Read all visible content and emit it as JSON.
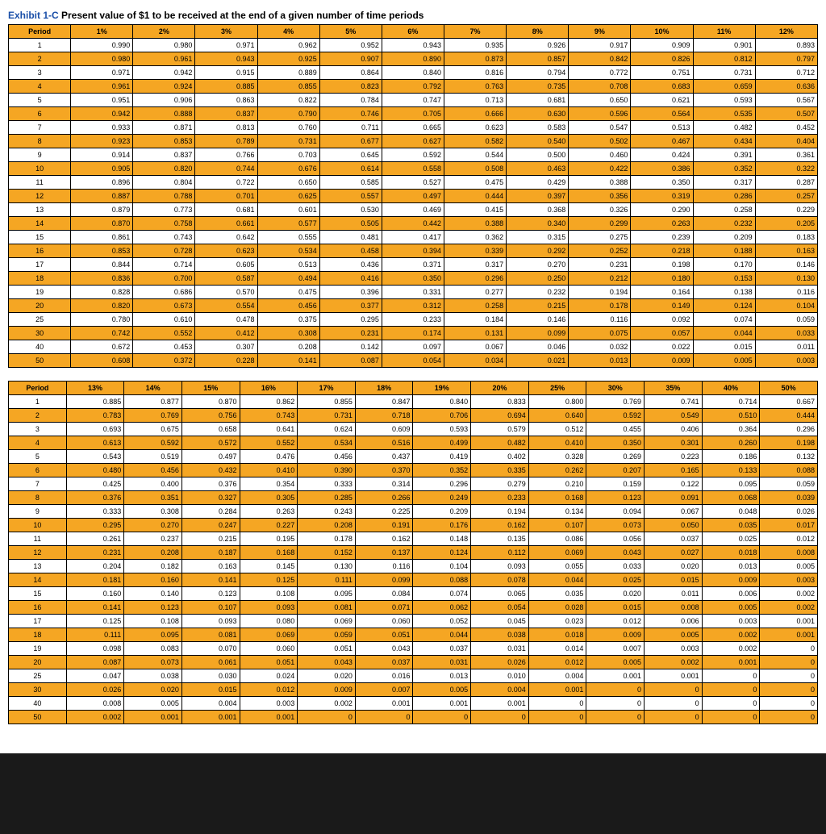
{
  "title_exhibit": "Exhibit 1-C",
  "title_rest": " Present value of $1 to be received at the end of a given number of time periods",
  "colors": {
    "header_bg": "#f5a623",
    "row_highlight": "#f5a623",
    "row_normal": "#ffffff",
    "border": "#000000",
    "page_bg": "#ffffff",
    "outer_bg": "#1a1a1a",
    "title_accent": "#1a4fa8",
    "text": "#000000"
  },
  "font_size_table": 9,
  "font_size_title": 12,
  "table1": {
    "period_header": "Period",
    "rate_headers": [
      "1%",
      "2%",
      "3%",
      "4%",
      "5%",
      "6%",
      "7%",
      "8%",
      "9%",
      "10%",
      "11%",
      "12%"
    ],
    "periods": [
      1,
      2,
      3,
      4,
      5,
      6,
      7,
      8,
      9,
      10,
      11,
      12,
      13,
      14,
      15,
      16,
      17,
      18,
      19,
      20,
      25,
      30,
      40,
      50
    ],
    "rows": [
      [
        "0.990",
        "0.980",
        "0.971",
        "0.962",
        "0.952",
        "0.943",
        "0.935",
        "0.926",
        "0.917",
        "0.909",
        "0.901",
        "0.893"
      ],
      [
        "0.980",
        "0.961",
        "0.943",
        "0.925",
        "0.907",
        "0.890",
        "0.873",
        "0.857",
        "0.842",
        "0.826",
        "0.812",
        "0.797"
      ],
      [
        "0.971",
        "0.942",
        "0.915",
        "0.889",
        "0.864",
        "0.840",
        "0.816",
        "0.794",
        "0.772",
        "0.751",
        "0.731",
        "0.712"
      ],
      [
        "0.961",
        "0.924",
        "0.885",
        "0.855",
        "0.823",
        "0.792",
        "0.763",
        "0.735",
        "0.708",
        "0.683",
        "0.659",
        "0.636"
      ],
      [
        "0.951",
        "0.906",
        "0.863",
        "0.822",
        "0.784",
        "0.747",
        "0.713",
        "0.681",
        "0.650",
        "0.621",
        "0.593",
        "0.567"
      ],
      [
        "0.942",
        "0.888",
        "0.837",
        "0.790",
        "0.746",
        "0.705",
        "0.666",
        "0.630",
        "0.596",
        "0.564",
        "0.535",
        "0.507"
      ],
      [
        "0.933",
        "0.871",
        "0.813",
        "0.760",
        "0.711",
        "0.665",
        "0.623",
        "0.583",
        "0.547",
        "0.513",
        "0.482",
        "0.452"
      ],
      [
        "0.923",
        "0.853",
        "0.789",
        "0.731",
        "0.677",
        "0.627",
        "0.582",
        "0.540",
        "0.502",
        "0.467",
        "0.434",
        "0.404"
      ],
      [
        "0.914",
        "0.837",
        "0.766",
        "0.703",
        "0.645",
        "0.592",
        "0.544",
        "0.500",
        "0.460",
        "0.424",
        "0.391",
        "0.361"
      ],
      [
        "0.905",
        "0.820",
        "0.744",
        "0.676",
        "0.614",
        "0.558",
        "0.508",
        "0.463",
        "0.422",
        "0.386",
        "0.352",
        "0.322"
      ],
      [
        "0.896",
        "0.804",
        "0.722",
        "0.650",
        "0.585",
        "0.527",
        "0.475",
        "0.429",
        "0.388",
        "0.350",
        "0.317",
        "0.287"
      ],
      [
        "0.887",
        "0.788",
        "0.701",
        "0.625",
        "0.557",
        "0.497",
        "0.444",
        "0.397",
        "0.356",
        "0.319",
        "0.286",
        "0.257"
      ],
      [
        "0.879",
        "0.773",
        "0.681",
        "0.601",
        "0.530",
        "0.469",
        "0.415",
        "0.368",
        "0.326",
        "0.290",
        "0.258",
        "0.229"
      ],
      [
        "0.870",
        "0.758",
        "0.661",
        "0.577",
        "0.505",
        "0.442",
        "0.388",
        "0.340",
        "0.299",
        "0.263",
        "0.232",
        "0.205"
      ],
      [
        "0.861",
        "0.743",
        "0.642",
        "0.555",
        "0.481",
        "0.417",
        "0.362",
        "0.315",
        "0.275",
        "0.239",
        "0.209",
        "0.183"
      ],
      [
        "0.853",
        "0.728",
        "0.623",
        "0.534",
        "0.458",
        "0.394",
        "0.339",
        "0.292",
        "0.252",
        "0.218",
        "0.188",
        "0.163"
      ],
      [
        "0.844",
        "0.714",
        "0.605",
        "0.513",
        "0.436",
        "0.371",
        "0.317",
        "0.270",
        "0.231",
        "0.198",
        "0.170",
        "0.146"
      ],
      [
        "0.836",
        "0.700",
        "0.587",
        "0.494",
        "0.416",
        "0.350",
        "0.296",
        "0.250",
        "0.212",
        "0.180",
        "0.153",
        "0.130"
      ],
      [
        "0.828",
        "0.686",
        "0.570",
        "0.475",
        "0.396",
        "0.331",
        "0.277",
        "0.232",
        "0.194",
        "0.164",
        "0.138",
        "0.116"
      ],
      [
        "0.820",
        "0.673",
        "0.554",
        "0.456",
        "0.377",
        "0.312",
        "0.258",
        "0.215",
        "0.178",
        "0.149",
        "0.124",
        "0.104"
      ],
      [
        "0.780",
        "0.610",
        "0.478",
        "0.375",
        "0.295",
        "0.233",
        "0.184",
        "0.146",
        "0.116",
        "0.092",
        "0.074",
        "0.059"
      ],
      [
        "0.742",
        "0.552",
        "0.412",
        "0.308",
        "0.231",
        "0.174",
        "0.131",
        "0.099",
        "0.075",
        "0.057",
        "0.044",
        "0.033"
      ],
      [
        "0.672",
        "0.453",
        "0.307",
        "0.208",
        "0.142",
        "0.097",
        "0.067",
        "0.046",
        "0.032",
        "0.022",
        "0.015",
        "0.011"
      ],
      [
        "0.608",
        "0.372",
        "0.228",
        "0.141",
        "0.087",
        "0.054",
        "0.034",
        "0.021",
        "0.013",
        "0.009",
        "0.005",
        "0.003"
      ]
    ]
  },
  "table2": {
    "period_header": "Period",
    "rate_headers": [
      "13%",
      "14%",
      "15%",
      "16%",
      "17%",
      "18%",
      "19%",
      "20%",
      "25%",
      "30%",
      "35%",
      "40%",
      "50%"
    ],
    "periods": [
      1,
      2,
      3,
      4,
      5,
      6,
      7,
      8,
      9,
      10,
      11,
      12,
      13,
      14,
      15,
      16,
      17,
      18,
      19,
      20,
      25,
      30,
      40,
      50
    ],
    "rows": [
      [
        "0.885",
        "0.877",
        "0.870",
        "0.862",
        "0.855",
        "0.847",
        "0.840",
        "0.833",
        "0.800",
        "0.769",
        "0.741",
        "0.714",
        "0.667"
      ],
      [
        "0.783",
        "0.769",
        "0.756",
        "0.743",
        "0.731",
        "0.718",
        "0.706",
        "0.694",
        "0.640",
        "0.592",
        "0.549",
        "0.510",
        "0.444"
      ],
      [
        "0.693",
        "0.675",
        "0.658",
        "0.641",
        "0.624",
        "0.609",
        "0.593",
        "0.579",
        "0.512",
        "0.455",
        "0.406",
        "0.364",
        "0.296"
      ],
      [
        "0.613",
        "0.592",
        "0.572",
        "0.552",
        "0.534",
        "0.516",
        "0.499",
        "0.482",
        "0.410",
        "0.350",
        "0.301",
        "0.260",
        "0.198"
      ],
      [
        "0.543",
        "0.519",
        "0.497",
        "0.476",
        "0.456",
        "0.437",
        "0.419",
        "0.402",
        "0.328",
        "0.269",
        "0.223",
        "0.186",
        "0.132"
      ],
      [
        "0.480",
        "0.456",
        "0.432",
        "0.410",
        "0.390",
        "0.370",
        "0.352",
        "0.335",
        "0.262",
        "0.207",
        "0.165",
        "0.133",
        "0.088"
      ],
      [
        "0.425",
        "0.400",
        "0.376",
        "0.354",
        "0.333",
        "0.314",
        "0.296",
        "0.279",
        "0.210",
        "0.159",
        "0.122",
        "0.095",
        "0.059"
      ],
      [
        "0.376",
        "0.351",
        "0.327",
        "0.305",
        "0.285",
        "0.266",
        "0.249",
        "0.233",
        "0.168",
        "0.123",
        "0.091",
        "0.068",
        "0.039"
      ],
      [
        "0.333",
        "0.308",
        "0.284",
        "0.263",
        "0.243",
        "0.225",
        "0.209",
        "0.194",
        "0.134",
        "0.094",
        "0.067",
        "0.048",
        "0.026"
      ],
      [
        "0.295",
        "0.270",
        "0.247",
        "0.227",
        "0.208",
        "0.191",
        "0.176",
        "0.162",
        "0.107",
        "0.073",
        "0.050",
        "0.035",
        "0.017"
      ],
      [
        "0.261",
        "0.237",
        "0.215",
        "0.195",
        "0.178",
        "0.162",
        "0.148",
        "0.135",
        "0.086",
        "0.056",
        "0.037",
        "0.025",
        "0.012"
      ],
      [
        "0.231",
        "0.208",
        "0.187",
        "0.168",
        "0.152",
        "0.137",
        "0.124",
        "0.112",
        "0.069",
        "0.043",
        "0.027",
        "0.018",
        "0.008"
      ],
      [
        "0.204",
        "0.182",
        "0.163",
        "0.145",
        "0.130",
        "0.116",
        "0.104",
        "0.093",
        "0.055",
        "0.033",
        "0.020",
        "0.013",
        "0.005"
      ],
      [
        "0.181",
        "0.160",
        "0.141",
        "0.125",
        "0.111",
        "0.099",
        "0.088",
        "0.078",
        "0.044",
        "0.025",
        "0.015",
        "0.009",
        "0.003"
      ],
      [
        "0.160",
        "0.140",
        "0.123",
        "0.108",
        "0.095",
        "0.084",
        "0.074",
        "0.065",
        "0.035",
        "0.020",
        "0.011",
        "0.006",
        "0.002"
      ],
      [
        "0.141",
        "0.123",
        "0.107",
        "0.093",
        "0.081",
        "0.071",
        "0.062",
        "0.054",
        "0.028",
        "0.015",
        "0.008",
        "0.005",
        "0.002"
      ],
      [
        "0.125",
        "0.108",
        "0.093",
        "0.080",
        "0.069",
        "0.060",
        "0.052",
        "0.045",
        "0.023",
        "0.012",
        "0.006",
        "0.003",
        "0.001"
      ],
      [
        "0.111",
        "0.095",
        "0.081",
        "0.069",
        "0.059",
        "0.051",
        "0.044",
        "0.038",
        "0.018",
        "0.009",
        "0.005",
        "0.002",
        "0.001"
      ],
      [
        "0.098",
        "0.083",
        "0.070",
        "0.060",
        "0.051",
        "0.043",
        "0.037",
        "0.031",
        "0.014",
        "0.007",
        "0.003",
        "0.002",
        "0"
      ],
      [
        "0.087",
        "0.073",
        "0.061",
        "0.051",
        "0.043",
        "0.037",
        "0.031",
        "0.026",
        "0.012",
        "0.005",
        "0.002",
        "0.001",
        "0"
      ],
      [
        "0.047",
        "0.038",
        "0.030",
        "0.024",
        "0.020",
        "0.016",
        "0.013",
        "0.010",
        "0.004",
        "0.001",
        "0.001",
        "0",
        "0"
      ],
      [
        "0.026",
        "0.020",
        "0.015",
        "0.012",
        "0.009",
        "0.007",
        "0.005",
        "0.004",
        "0.001",
        "0",
        "0",
        "0",
        "0"
      ],
      [
        "0.008",
        "0.005",
        "0.004",
        "0.003",
        "0.002",
        "0.001",
        "0.001",
        "0.001",
        "0",
        "0",
        "0",
        "0",
        "0"
      ],
      [
        "0.002",
        "0.001",
        "0.001",
        "0.001",
        "0",
        "0",
        "0",
        "0",
        "0",
        "0",
        "0",
        "0",
        "0"
      ]
    ]
  }
}
